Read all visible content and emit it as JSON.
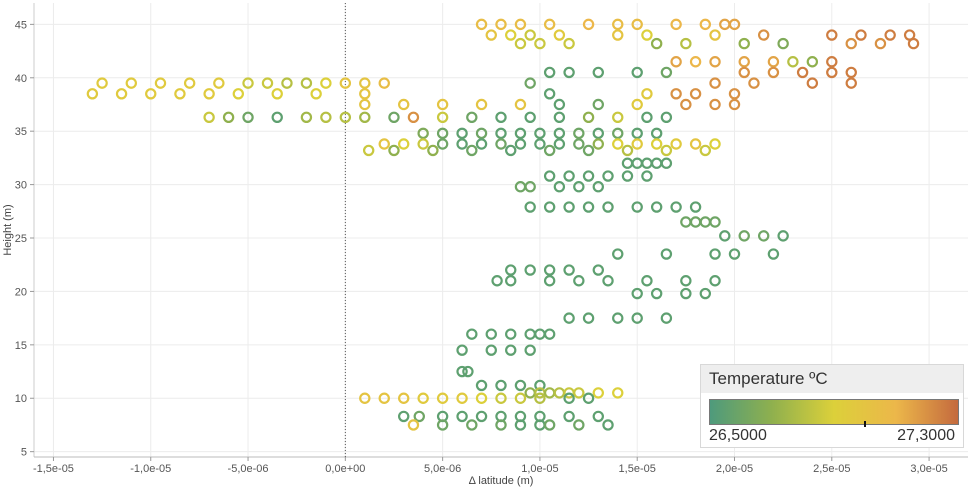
{
  "chart_data": {
    "type": "scatter",
    "marker": "hollow-circle",
    "xlabel": "Δ latitude (m)",
    "ylabel": "Height (m)",
    "xlim": [
      -1.6e-05,
      3.2e-05
    ],
    "ylim": [
      4.5,
      47.0
    ],
    "xticks": [
      -1.5e-05,
      -1e-05,
      -5e-06,
      0,
      5e-06,
      1e-05,
      1.5e-05,
      2e-05,
      2.5e-05,
      3e-05
    ],
    "xtick_labels": [
      "-1,5e-05",
      "-1,0e-05",
      "-5,0e-06",
      "0,0e+00",
      "5,0e-06",
      "1,0e-05",
      "1,5e-05",
      "2,0e-05",
      "2,5e-05",
      "3,0e-05"
    ],
    "yticks": [
      5,
      10,
      15,
      20,
      25,
      30,
      35,
      40,
      45
    ],
    "ytick_labels": [
      "5",
      "10",
      "15",
      "20",
      "25",
      "30",
      "35",
      "40",
      "45"
    ],
    "grid": true,
    "reference_line_x": 0,
    "color_legend": {
      "title": "Temperature ºC",
      "min_label": "26,5000",
      "max_label": "27,3000",
      "min": 26.5,
      "max": 27.3,
      "marker_value": 27.0,
      "colors": [
        "#4e9a7c",
        "#8fb04e",
        "#dcd03a",
        "#ecb74a",
        "#c46a3e"
      ]
    },
    "series": [
      {
        "y": 45.0,
        "x": [
          7e-06,
          8e-06,
          9e-06,
          1.05e-05,
          1.25e-05,
          1.4e-05,
          1.5e-05,
          1.7e-05,
          1.85e-05,
          1.95e-05,
          2e-05
        ],
        "temp": [
          27.05,
          27.05,
          27.05,
          27.05,
          27.1,
          27.05,
          27.05,
          27.1,
          27.1,
          27.15,
          27.15
        ]
      },
      {
        "y": 44.0,
        "x": [
          7.5e-06,
          8.5e-06,
          9.5e-06,
          1.1e-05,
          1.4e-05,
          1.55e-05,
          1.9e-05,
          2.15e-05,
          2.5e-05,
          2.65e-05,
          2.8e-05,
          2.9e-05
        ],
        "temp": [
          27.0,
          26.9,
          26.85,
          26.95,
          27.0,
          26.9,
          27.0,
          27.2,
          27.25,
          27.25,
          27.25,
          27.25
        ]
      },
      {
        "y": 43.2,
        "x": [
          9e-06,
          1e-05,
          1.15e-05,
          1.6e-05,
          1.75e-05,
          2.05e-05,
          2.25e-05,
          2.6e-05,
          2.75e-05,
          2.92e-05
        ],
        "temp": [
          26.85,
          26.85,
          26.85,
          26.7,
          26.8,
          26.7,
          26.65,
          27.2,
          27.2,
          27.25
        ]
      },
      {
        "y": 41.5,
        "x": [
          1.7e-05,
          1.8e-05,
          1.9e-05,
          2.05e-05,
          2.2e-05,
          2.3e-05,
          2.4e-05,
          2.5e-05
        ],
        "temp": [
          27.15,
          27.1,
          27.15,
          27.15,
          27.15,
          26.8,
          26.7,
          27.25
        ]
      },
      {
        "y": 40.5,
        "x": [
          1.05e-05,
          1.15e-05,
          1.3e-05,
          1.5e-05,
          1.65e-05,
          2.05e-05,
          2.2e-05,
          2.35e-05,
          2.5e-05,
          2.6e-05
        ],
        "temp": [
          26.55,
          26.55,
          26.55,
          26.55,
          26.6,
          27.2,
          27.2,
          27.25,
          27.25,
          27.25
        ]
      },
      {
        "y": 39.5,
        "x": [
          -1.25e-05,
          -1.1e-05,
          -9.5e-06,
          -8e-06,
          -6.5e-06,
          -5e-06,
          -4e-06,
          -3e-06,
          -2e-06,
          -1e-06,
          0.0,
          1e-06,
          2e-06,
          9.5e-06,
          1.9e-05,
          2.1e-05,
          2.4e-05,
          2.6e-05
        ],
        "temp": [
          26.95,
          26.95,
          26.95,
          26.95,
          26.95,
          26.85,
          26.85,
          26.8,
          26.8,
          26.9,
          27.0,
          27.0,
          27.05,
          26.6,
          27.2,
          27.2,
          27.25,
          27.25
        ]
      },
      {
        "y": 38.5,
        "x": [
          -1.3e-05,
          -1.15e-05,
          -1e-05,
          -8.5e-06,
          -7e-06,
          -5.5e-06,
          -3.5e-06,
          -1.5e-06,
          1e-06,
          1.05e-05,
          1.55e-05,
          1.7e-05,
          1.8e-05,
          2e-05
        ],
        "temp": [
          26.95,
          26.95,
          26.95,
          26.95,
          26.95,
          26.9,
          26.9,
          26.9,
          27.0,
          26.55,
          26.95,
          27.2,
          27.2,
          27.2
        ]
      },
      {
        "y": 37.5,
        "x": [
          1e-06,
          3e-06,
          5e-06,
          7e-06,
          9e-06,
          1.1e-05,
          1.3e-05,
          1.5e-05,
          1.75e-05,
          1.9e-05,
          2e-05
        ],
        "temp": [
          27.0,
          27.0,
          27.0,
          27.0,
          27.0,
          26.55,
          26.6,
          26.95,
          27.2,
          27.2,
          27.2
        ]
      },
      {
        "y": 36.3,
        "x": [
          -7e-06,
          -6e-06,
          -5e-06,
          -3.5e-06,
          -2e-06,
          -1e-06,
          0.0,
          1e-06,
          2.5e-06,
          3.5e-06,
          5e-06,
          6.5e-06,
          8e-06,
          9.5e-06,
          1.1e-05,
          1.25e-05,
          1.4e-05,
          1.55e-05,
          1.65e-05
        ],
        "temp": [
          26.85,
          26.7,
          26.6,
          26.55,
          26.75,
          26.8,
          26.8,
          26.75,
          26.6,
          27.2,
          26.85,
          26.6,
          26.55,
          26.55,
          26.55,
          26.7,
          26.85,
          26.55,
          26.55
        ]
      },
      {
        "y": 34.8,
        "x": [
          4e-06,
          5e-06,
          6e-06,
          7e-06,
          8e-06,
          9e-06,
          1e-05,
          1.1e-05,
          1.2e-05,
          1.3e-05,
          1.4e-05,
          1.5e-05,
          1.6e-05
        ],
        "temp": [
          26.65,
          26.6,
          26.55,
          26.6,
          26.55,
          26.55,
          26.55,
          26.55,
          26.6,
          26.55,
          26.6,
          26.55,
          26.55
        ]
      },
      {
        "y": 33.8,
        "x": [
          2e-06,
          3e-06,
          4e-06,
          5e-06,
          6e-06,
          7e-06,
          8e-06,
          9e-06,
          1e-05,
          1.1e-05,
          1.2e-05,
          1.3e-05,
          1.4e-05,
          1.5e-05,
          1.6e-05,
          1.7e-05,
          1.8e-05,
          1.9e-05
        ],
        "temp": [
          27.0,
          26.9,
          26.85,
          26.6,
          26.55,
          26.55,
          26.6,
          26.55,
          26.55,
          26.55,
          26.6,
          26.7,
          26.9,
          26.95,
          26.9,
          26.95,
          27.0,
          26.9
        ]
      },
      {
        "y": 33.2,
        "x": [
          1.2e-06,
          2.5e-06,
          4.5e-06,
          6.5e-06,
          8.5e-06,
          1.05e-05,
          1.25e-05,
          1.45e-05,
          1.65e-05,
          1.85e-05
        ],
        "temp": [
          26.85,
          26.7,
          26.7,
          26.6,
          26.55,
          26.6,
          26.6,
          26.8,
          26.85,
          26.85
        ]
      },
      {
        "y": 32.0,
        "x": [
          1.45e-05,
          1.5e-05,
          1.55e-05,
          1.6e-05,
          1.65e-05
        ],
        "temp": [
          26.55,
          26.55,
          26.55,
          26.55,
          26.55
        ]
      },
      {
        "y": 30.8,
        "x": [
          1.05e-05,
          1.15e-05,
          1.25e-05,
          1.35e-05,
          1.45e-05,
          1.55e-05
        ],
        "temp": [
          26.55,
          26.55,
          26.55,
          26.55,
          26.55,
          26.55
        ]
      },
      {
        "y": 29.8,
        "x": [
          9e-06,
          9.5e-06,
          1.1e-05,
          1.2e-05,
          1.3e-05
        ],
        "temp": [
          26.6,
          26.6,
          26.55,
          26.55,
          26.55
        ]
      },
      {
        "y": 27.9,
        "x": [
          9.5e-06,
          1.05e-05,
          1.15e-05,
          1.25e-05,
          1.35e-05,
          1.5e-05,
          1.6e-05,
          1.7e-05,
          1.8e-05
        ],
        "temp": [
          26.55,
          26.55,
          26.55,
          26.55,
          26.55,
          26.55,
          26.55,
          26.55,
          26.55
        ]
      },
      {
        "y": 26.5,
        "x": [
          1.75e-05,
          1.8e-05,
          1.85e-05,
          1.9e-05
        ],
        "temp": [
          26.6,
          26.6,
          26.6,
          26.6
        ]
      },
      {
        "y": 25.2,
        "x": [
          1.95e-05,
          2.05e-05,
          2.15e-05,
          2.25e-05
        ],
        "temp": [
          26.55,
          26.6,
          26.6,
          26.55
        ]
      },
      {
        "y": 23.5,
        "x": [
          1.4e-05,
          1.65e-05,
          1.9e-05,
          2e-05,
          2.2e-05
        ],
        "temp": [
          26.55,
          26.55,
          26.55,
          26.55,
          26.55
        ]
      },
      {
        "y": 22.0,
        "x": [
          8.5e-06,
          9.5e-06,
          1.05e-05,
          1.15e-05,
          1.3e-05
        ],
        "temp": [
          26.55,
          26.55,
          26.55,
          26.55,
          26.55
        ]
      },
      {
        "y": 21.0,
        "x": [
          7.8e-06,
          8.5e-06,
          1.05e-05,
          1.2e-05,
          1.35e-05,
          1.55e-05,
          1.75e-05,
          1.9e-05
        ],
        "temp": [
          26.55,
          26.55,
          26.55,
          26.55,
          26.55,
          26.55,
          26.55,
          26.55
        ]
      },
      {
        "y": 19.8,
        "x": [
          1.5e-05,
          1.6e-05,
          1.75e-05,
          1.85e-05
        ],
        "temp": [
          26.55,
          26.55,
          26.55,
          26.55
        ]
      },
      {
        "y": 17.5,
        "x": [
          1.15e-05,
          1.25e-05,
          1.4e-05,
          1.5e-05,
          1.65e-05
        ],
        "temp": [
          26.55,
          26.55,
          26.55,
          26.55,
          26.55
        ]
      },
      {
        "y": 16.0,
        "x": [
          6.5e-06,
          7.5e-06,
          8.5e-06,
          9.5e-06,
          1e-05,
          1.05e-05
        ],
        "temp": [
          26.55,
          26.55,
          26.55,
          26.55,
          26.55,
          26.55
        ]
      },
      {
        "y": 14.5,
        "x": [
          6e-06,
          7.5e-06,
          8.5e-06,
          9.5e-06
        ],
        "temp": [
          26.55,
          26.55,
          26.55,
          26.55
        ]
      },
      {
        "y": 12.5,
        "x": [
          6e-06,
          6.3e-06
        ],
        "temp": [
          26.55,
          26.55
        ]
      },
      {
        "y": 11.2,
        "x": [
          7e-06,
          8e-06,
          9e-06,
          1e-05
        ],
        "temp": [
          26.55,
          26.55,
          26.55,
          26.55
        ]
      },
      {
        "y": 10.5,
        "x": [
          9.5e-06,
          1e-05,
          1.05e-05,
          1.1e-05,
          1.15e-05,
          1.2e-05,
          1.3e-05,
          1.4e-05
        ],
        "temp": [
          26.7,
          26.8,
          26.75,
          26.8,
          26.85,
          26.85,
          26.9,
          26.9
        ]
      },
      {
        "y": 10.0,
        "x": [
          1e-06,
          2e-06,
          3e-06,
          4e-06,
          5e-06,
          6e-06,
          7e-06,
          8e-06,
          9e-06,
          1e-05,
          1.15e-05,
          1.25e-05
        ],
        "temp": [
          27.0,
          27.0,
          27.0,
          26.95,
          26.95,
          26.95,
          26.9,
          26.85,
          26.85,
          26.8,
          26.55,
          26.55
        ]
      },
      {
        "y": 8.3,
        "x": [
          3e-06,
          3.8e-06,
          5e-06,
          6e-06,
          7e-06,
          8e-06,
          9e-06,
          1e-05,
          1.15e-05,
          1.3e-05
        ],
        "temp": [
          26.55,
          26.6,
          26.55,
          26.55,
          26.55,
          26.55,
          26.55,
          26.55,
          26.55,
          26.55
        ]
      },
      {
        "y": 7.5,
        "x": [
          3.5e-06,
          5e-06,
          6.5e-06,
          8e-06,
          9e-06,
          1e-05,
          1.05e-05,
          1.2e-05,
          1.35e-05
        ],
        "temp": [
          27.0,
          26.6,
          26.6,
          26.6,
          26.55,
          26.55,
          26.6,
          26.6,
          26.55
        ]
      }
    ]
  }
}
